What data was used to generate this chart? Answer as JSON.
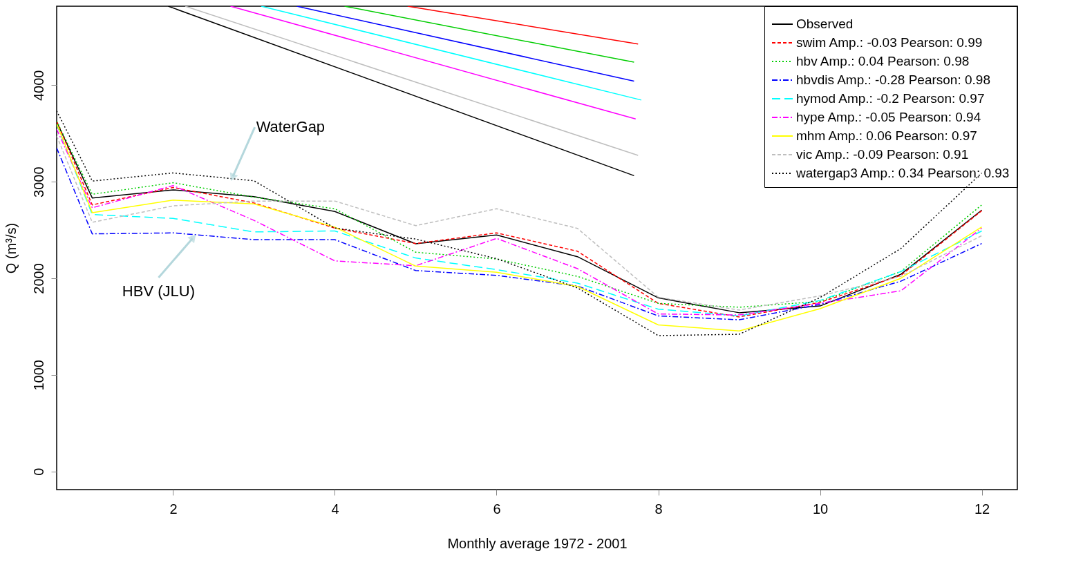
{
  "chart_data": {
    "type": "line",
    "xlabel": "Monthly average 1972 - 2001",
    "ylabel": "Q (m³/s)",
    "x": [
      0.56,
      1,
      2,
      3,
      4,
      5,
      6,
      7,
      8,
      9,
      10,
      11,
      12
    ],
    "xlim": [
      0.56,
      12.44
    ],
    "xticks": [
      2,
      4,
      6,
      8,
      10,
      12
    ],
    "ylim": [
      -189,
      4818
    ],
    "yticks": [
      0,
      1000,
      2000,
      3000,
      4000
    ],
    "grid": false,
    "legend": "top right",
    "marker": "none",
    "series": [
      {
        "name": "Observed",
        "color": "#000000",
        "line_style": "solid",
        "values": [
          3620,
          2832,
          2916,
          2846,
          2692,
          2357,
          2448,
          2224,
          1797,
          1643,
          1713,
          2042,
          2706
        ]
      },
      {
        "name": "swim Amp.: -0.03 Pearson: 0.99",
        "color": "#ff0000",
        "line_style": "dashed",
        "values": [
          3629,
          2760,
          2940,
          2780,
          2520,
          2360,
          2470,
          2280,
          1740,
          1600,
          1750,
          2030,
          2700
        ]
      },
      {
        "name": "hbv Amp.: 0.04 Pearson: 0.98",
        "color": "#00cd00",
        "line_style": "dotted",
        "values": [
          3629,
          2870,
          2990,
          2840,
          2720,
          2270,
          2200,
          2020,
          1740,
          1700,
          1760,
          2070,
          2760
        ]
      },
      {
        "name": "hbvdis Amp.: -0.28 Pearson: 0.98",
        "color": "#0000ff",
        "line_style": "dashdot",
        "values": [
          3350,
          2460,
          2470,
          2400,
          2400,
          2080,
          2030,
          1920,
          1610,
          1570,
          1730,
          1970,
          2360
        ]
      },
      {
        "name": "hymod Amp.: -0.2 Pearson: 0.97",
        "color": "#00ffff",
        "line_style": "longdash",
        "values": [
          3594,
          2660,
          2620,
          2480,
          2490,
          2210,
          2090,
          1950,
          1680,
          1610,
          1770,
          2070,
          2490
        ]
      },
      {
        "name": "hype Amp.: -0.05 Pearson: 0.94",
        "color": "#ff00ff",
        "line_style": "dashdot",
        "values": [
          3545,
          2730,
          2960,
          2600,
          2180,
          2130,
          2413,
          2100,
          1630,
          1620,
          1740,
          1870,
          2520
        ]
      },
      {
        "name": "mhm Amp.: 0.06 Pearson: 0.97",
        "color": "#ffff00",
        "line_style": "solid",
        "values": [
          3600,
          2680,
          2810,
          2770,
          2530,
          2126,
          2063,
          1916,
          1517,
          1455,
          1685,
          2000,
          2531
        ]
      },
      {
        "name": "vic Amp.: -0.09 Pearson: 0.91",
        "color": "#bebebe",
        "line_style": "dashed",
        "values": [
          3475,
          2580,
          2750,
          2800,
          2800,
          2545,
          2720,
          2517,
          1804,
          1671,
          1818,
          2020,
          2441
        ]
      },
      {
        "name": "watergap3 Amp.: 0.34 Pearson: 0.93",
        "color": "#000000",
        "line_style": "dotted",
        "values": [
          3734,
          3007,
          3091,
          3010,
          2520,
          2406,
          2203,
          1900,
          1406,
          1420,
          1800,
          2308,
          3090
        ]
      },
      {
        "color": "#ff0000",
        "line_style": "solid",
        "x": [
          4.9,
          7.75
        ],
        "values": [
          4818,
          4427
        ]
      },
      {
        "color": "#00cd00",
        "line_style": "solid",
        "x": [
          4.12,
          7.7
        ],
        "values": [
          4818,
          4238
        ]
      },
      {
        "color": "#0000ff",
        "line_style": "solid",
        "x": [
          3.53,
          7.7
        ],
        "values": [
          4818,
          4042
        ]
      },
      {
        "color": "#00ffff",
        "line_style": "solid",
        "x": [
          3.09,
          7.79
        ],
        "values": [
          4818,
          3846
        ]
      },
      {
        "color": "#ff00ff",
        "line_style": "solid",
        "x": [
          2.71,
          7.72
        ],
        "values": [
          4818,
          3650
        ]
      },
      {
        "color": "#bebebe",
        "line_style": "solid",
        "x": [
          2.15,
          7.75
        ],
        "values": [
          4818,
          3273
        ]
      },
      {
        "color": "#000000",
        "line_style": "solid",
        "x": [
          1.94,
          7.7
        ],
        "values": [
          4818,
          3063
        ]
      }
    ],
    "annotations": [
      {
        "text": "WaterGap",
        "x": 2.74,
        "y": 3056
      },
      {
        "text": "HBV (JLU)",
        "x": 2.24,
        "y": 2413
      }
    ]
  }
}
